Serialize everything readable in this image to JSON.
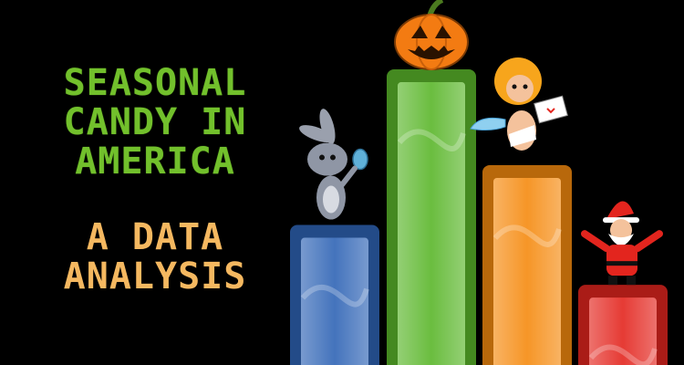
{
  "title": {
    "lines": [
      "SEASONAL",
      "CANDY IN",
      "AMERICA"
    ]
  },
  "subtitle": {
    "lines": [
      "A DATA",
      "ANALYSIS"
    ]
  },
  "colors": {
    "title": "#72c02c",
    "subtitle": "#f5b860",
    "background": "#000000"
  },
  "chart_data": {
    "type": "bar",
    "title": "",
    "xlabel": "",
    "ylabel": "",
    "ylim": [
      0,
      100
    ],
    "grid": false,
    "legend": "none",
    "categories": [
      "Easter",
      "Halloween",
      "Valentine's Day",
      "Christmas"
    ],
    "values": [
      48,
      100,
      68,
      28
    ],
    "colors": [
      "#2f64b5",
      "#5ab62a",
      "#f58a0f",
      "#e3251e"
    ],
    "icons": [
      "bunny-icon",
      "pumpkin-icon",
      "cupid-icon",
      "santa-icon"
    ]
  }
}
